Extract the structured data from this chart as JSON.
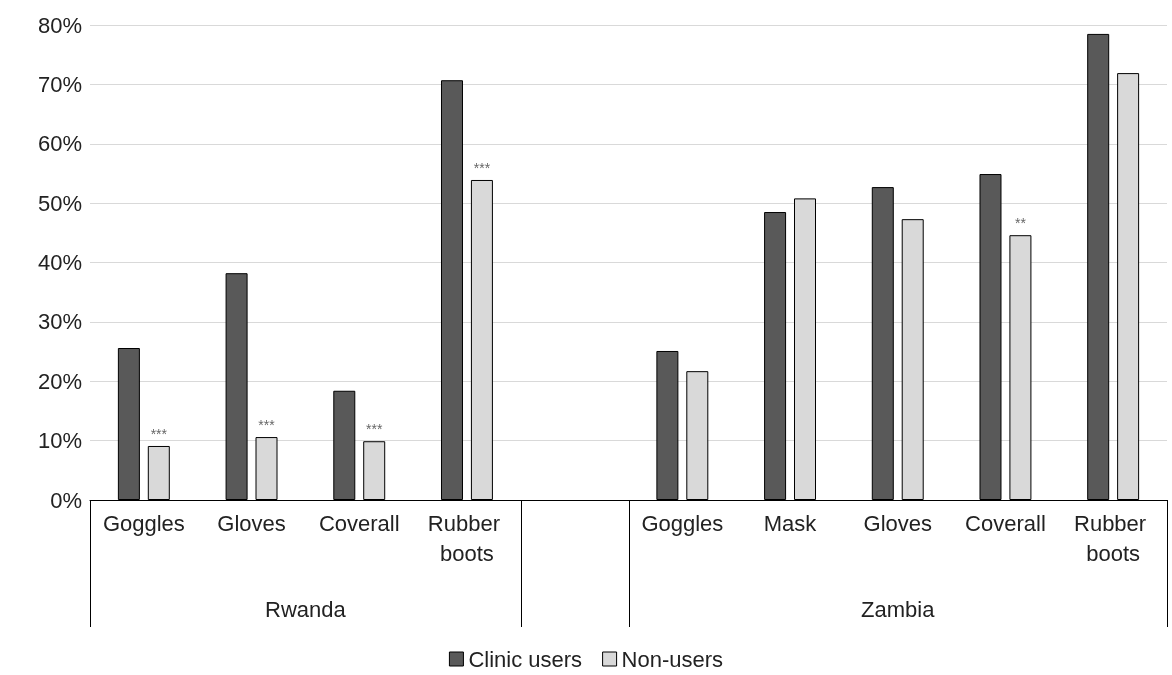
{
  "chart_data": {
    "type": "bar",
    "categories": [
      "Goggles",
      "Gloves",
      "Coverall",
      "Rubber boots",
      null,
      "Goggles",
      "Mask",
      "Gloves",
      "Coverall",
      "Rubber boots"
    ],
    "series": [
      {
        "name": "Clinic users",
        "color": "#595959",
        "values": [
          25.6,
          38.2,
          18.4,
          70.7,
          null,
          25.1,
          48.5,
          52.7,
          54.9,
          78.5
        ]
      },
      {
        "name": "Non-users",
        "color": "#d9d9d9",
        "values": [
          9.1,
          10.6,
          9.9,
          53.9,
          null,
          21.7,
          50.8,
          47.3,
          44.6,
          71.9
        ],
        "value_labels": [
          "***",
          "***",
          "***",
          "***",
          null,
          null,
          null,
          null,
          "**",
          null
        ]
      }
    ],
    "annotations": [
      "Rwanda",
      "Zambia"
    ],
    "ylim": [
      0,
      80
    ],
    "yticks": [
      {
        "value": 0,
        "label": "0%"
      },
      {
        "value": 10,
        "label": "10%"
      },
      {
        "value": 20,
        "label": "20%"
      },
      {
        "value": 30,
        "label": "30%"
      },
      {
        "value": 40,
        "label": "40%"
      },
      {
        "value": 50,
        "label": "50%"
      },
      {
        "value": 60,
        "label": "60%"
      },
      {
        "value": 70,
        "label": "70%"
      },
      {
        "value": 80,
        "label": "80%"
      }
    ],
    "grid": "y",
    "legend": "bottom"
  }
}
